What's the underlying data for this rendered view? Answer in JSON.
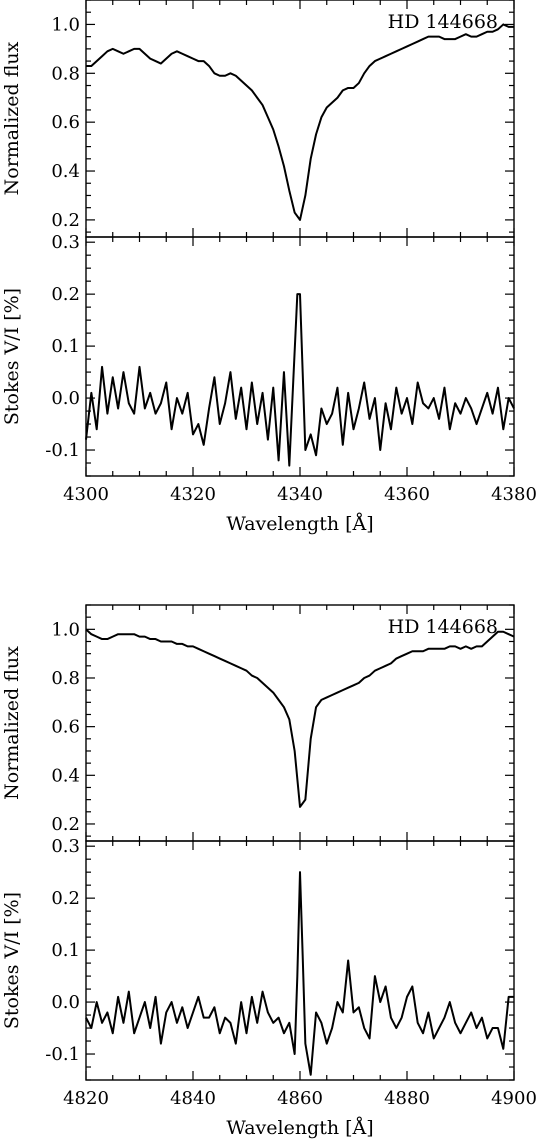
{
  "chart_data": [
    {
      "type": "line",
      "xlim": [
        4300,
        4380
      ],
      "ylim": [
        0.13,
        1.1
      ],
      "x_ticks": [
        "4300",
        "4320",
        "4340",
        "4360",
        "4380"
      ],
      "y_ticks": [
        "0.2",
        "0.4",
        "0.6",
        "0.8",
        "1.0"
      ],
      "ylabel": "Normalized flux",
      "annotation": "HD 144668",
      "series": [
        {
          "x": [
            4300,
            4301,
            4302,
            4303,
            4304,
            4305,
            4306,
            4307,
            4308,
            4309,
            4310,
            4311,
            4312,
            4313,
            4314,
            4315,
            4316,
            4317,
            4318,
            4319,
            4320,
            4321,
            4322,
            4323,
            4324,
            4325,
            4326,
            4327,
            4328,
            4329,
            4330,
            4331,
            4332,
            4333,
            4334,
            4335,
            4336,
            4337,
            4338,
            4339,
            4340,
            4341,
            4342,
            4343,
            4344,
            4345,
            4346,
            4347,
            4348,
            4349,
            4350,
            4351,
            4352,
            4353,
            4354,
            4355,
            4356,
            4357,
            4358,
            4359,
            4360,
            4361,
            4362,
            4363,
            4364,
            4365,
            4366,
            4367,
            4368,
            4369,
            4370,
            4371,
            4372,
            4373,
            4374,
            4375,
            4376,
            4377,
            4378,
            4379,
            4380
          ],
          "y": [
            0.83,
            0.83,
            0.85,
            0.87,
            0.89,
            0.9,
            0.89,
            0.88,
            0.89,
            0.9,
            0.9,
            0.88,
            0.86,
            0.85,
            0.84,
            0.86,
            0.88,
            0.89,
            0.88,
            0.87,
            0.86,
            0.85,
            0.85,
            0.83,
            0.8,
            0.79,
            0.79,
            0.8,
            0.79,
            0.77,
            0.75,
            0.73,
            0.7,
            0.67,
            0.62,
            0.57,
            0.5,
            0.42,
            0.32,
            0.23,
            0.2,
            0.3,
            0.45,
            0.55,
            0.62,
            0.66,
            0.68,
            0.7,
            0.73,
            0.74,
            0.74,
            0.76,
            0.8,
            0.83,
            0.85,
            0.86,
            0.87,
            0.88,
            0.89,
            0.9,
            0.91,
            0.92,
            0.93,
            0.94,
            0.95,
            0.95,
            0.95,
            0.94,
            0.94,
            0.94,
            0.95,
            0.96,
            0.95,
            0.95,
            0.96,
            0.97,
            0.97,
            0.98,
            1.0,
            0.99,
            0.99
          ]
        }
      ]
    },
    {
      "type": "line",
      "xlim": [
        4300,
        4380
      ],
      "ylim": [
        -0.15,
        0.31
      ],
      "x_ticks": [
        "4300",
        "4320",
        "4340",
        "4360",
        "4380"
      ],
      "y_ticks": [
        "-0.1",
        "0.0",
        "0.1",
        "0.2",
        "0.3"
      ],
      "xlabel": "Wavelength [Å]",
      "ylabel": "Stokes V/I [%]",
      "series": [
        {
          "x": [
            4300,
            4301,
            4302,
            4303,
            4304,
            4305,
            4306,
            4307,
            4308,
            4309,
            4310,
            4311,
            4312,
            4313,
            4314,
            4315,
            4316,
            4317,
            4318,
            4319,
            4320,
            4321,
            4322,
            4323,
            4324,
            4325,
            4326,
            4327,
            4328,
            4329,
            4330,
            4331,
            4332,
            4333,
            4334,
            4335,
            4336,
            4337,
            4338,
            4339,
            4339.5,
            4340,
            4340.5,
            4341,
            4342,
            4343,
            4344,
            4345,
            4346,
            4347,
            4348,
            4349,
            4350,
            4351,
            4352,
            4353,
            4354,
            4355,
            4356,
            4357,
            4358,
            4359,
            4360,
            4361,
            4362,
            4363,
            4364,
            4365,
            4366,
            4367,
            4368,
            4369,
            4370,
            4371,
            4372,
            4373,
            4374,
            4375,
            4376,
            4377,
            4378,
            4379,
            4380
          ],
          "y": [
            -0.08,
            0.01,
            -0.06,
            0.06,
            -0.03,
            0.04,
            -0.02,
            0.05,
            -0.01,
            -0.03,
            0.06,
            -0.02,
            0.01,
            -0.03,
            -0.01,
            0.03,
            -0.06,
            0.0,
            -0.03,
            0.01,
            -0.07,
            -0.05,
            -0.09,
            -0.02,
            0.04,
            -0.05,
            -0.01,
            0.05,
            -0.04,
            0.02,
            -0.06,
            0.03,
            -0.05,
            0.01,
            -0.08,
            0.02,
            -0.12,
            0.05,
            -0.13,
            0.09,
            0.2,
            0.2,
            0.05,
            -0.1,
            -0.07,
            -0.11,
            -0.02,
            -0.05,
            -0.03,
            0.02,
            -0.09,
            0.01,
            -0.06,
            -0.02,
            0.03,
            -0.04,
            0.0,
            -0.1,
            -0.01,
            -0.06,
            0.02,
            -0.03,
            0.0,
            -0.05,
            0.03,
            -0.01,
            -0.02,
            0.0,
            -0.04,
            0.02,
            -0.06,
            -0.01,
            -0.03,
            0.0,
            -0.02,
            -0.05,
            -0.02,
            0.01,
            -0.03,
            0.02,
            -0.06,
            0.0,
            -0.02
          ]
        }
      ]
    },
    {
      "type": "line",
      "xlim": [
        4820,
        4900
      ],
      "ylim": [
        0.13,
        1.1
      ],
      "x_ticks": [
        "4820",
        "4840",
        "4860",
        "4880",
        "4900"
      ],
      "y_ticks": [
        "0.2",
        "0.4",
        "0.6",
        "0.8",
        "1.0"
      ],
      "ylabel": "Normalized flux",
      "annotation": "HD 144668",
      "series": [
        {
          "x": [
            4820,
            4821,
            4822,
            4823,
            4824,
            4825,
            4826,
            4827,
            4828,
            4829,
            4830,
            4831,
            4832,
            4833,
            4834,
            4835,
            4836,
            4837,
            4838,
            4839,
            4840,
            4841,
            4842,
            4843,
            4844,
            4845,
            4846,
            4847,
            4848,
            4849,
            4850,
            4851,
            4852,
            4853,
            4854,
            4855,
            4856,
            4857,
            4858,
            4859,
            4860,
            4861,
            4862,
            4863,
            4864,
            4865,
            4866,
            4867,
            4868,
            4869,
            4870,
            4871,
            4872,
            4873,
            4874,
            4875,
            4876,
            4877,
            4878,
            4879,
            4880,
            4881,
            4882,
            4883,
            4884,
            4885,
            4886,
            4887,
            4888,
            4889,
            4890,
            4891,
            4892,
            4893,
            4894,
            4895,
            4896,
            4897,
            4898,
            4899,
            4900
          ],
          "y": [
            1.0,
            0.98,
            0.97,
            0.96,
            0.96,
            0.97,
            0.98,
            0.98,
            0.98,
            0.98,
            0.97,
            0.97,
            0.96,
            0.96,
            0.95,
            0.95,
            0.95,
            0.94,
            0.94,
            0.93,
            0.93,
            0.92,
            0.91,
            0.9,
            0.89,
            0.88,
            0.87,
            0.86,
            0.85,
            0.84,
            0.83,
            0.81,
            0.8,
            0.78,
            0.76,
            0.74,
            0.71,
            0.68,
            0.63,
            0.5,
            0.27,
            0.3,
            0.55,
            0.68,
            0.71,
            0.72,
            0.73,
            0.74,
            0.75,
            0.76,
            0.77,
            0.78,
            0.8,
            0.81,
            0.83,
            0.84,
            0.85,
            0.86,
            0.88,
            0.89,
            0.9,
            0.91,
            0.91,
            0.91,
            0.92,
            0.92,
            0.92,
            0.92,
            0.93,
            0.93,
            0.92,
            0.93,
            0.92,
            0.93,
            0.93,
            0.95,
            0.97,
            0.99,
            0.99,
            0.98,
            0.97
          ]
        }
      ]
    },
    {
      "type": "line",
      "xlim": [
        4820,
        4900
      ],
      "ylim": [
        -0.15,
        0.31
      ],
      "x_ticks": [
        "4820",
        "4840",
        "4860",
        "4880",
        "4900"
      ],
      "y_ticks": [
        "-0.1",
        "0.0",
        "0.1",
        "0.2",
        "0.3"
      ],
      "xlabel": "Wavelength [Å]",
      "ylabel": "Stokes V/I [%]",
      "series": [
        {
          "x": [
            4820,
            4821,
            4822,
            4823,
            4824,
            4825,
            4826,
            4827,
            4828,
            4829,
            4830,
            4831,
            4832,
            4833,
            4834,
            4835,
            4836,
            4837,
            4838,
            4839,
            4840,
            4841,
            4842,
            4843,
            4844,
            4845,
            4846,
            4847,
            4848,
            4849,
            4850,
            4851,
            4852,
            4853,
            4854,
            4855,
            4856,
            4857,
            4858,
            4859,
            4859.5,
            4860,
            4860.5,
            4861,
            4862,
            4863,
            4864,
            4865,
            4866,
            4867,
            4868,
            4869,
            4870,
            4871,
            4872,
            4873,
            4874,
            4875,
            4876,
            4877,
            4878,
            4879,
            4880,
            4881,
            4882,
            4883,
            4884,
            4885,
            4886,
            4887,
            4888,
            4889,
            4890,
            4891,
            4892,
            4893,
            4894,
            4895,
            4896,
            4897,
            4898,
            4899,
            4900
          ],
          "y": [
            -0.03,
            -0.05,
            0.0,
            -0.04,
            -0.02,
            -0.06,
            0.01,
            -0.04,
            0.02,
            -0.06,
            -0.03,
            0.0,
            -0.05,
            0.01,
            -0.08,
            -0.02,
            0.0,
            -0.04,
            -0.01,
            -0.05,
            -0.02,
            0.01,
            -0.03,
            -0.03,
            -0.01,
            -0.06,
            -0.03,
            -0.04,
            -0.08,
            0.0,
            -0.06,
            0.01,
            -0.04,
            0.02,
            -0.02,
            -0.04,
            -0.03,
            -0.06,
            -0.04,
            -0.1,
            0.05,
            0.25,
            0.09,
            -0.08,
            -0.14,
            -0.02,
            -0.04,
            -0.08,
            -0.05,
            0.0,
            -0.02,
            0.08,
            -0.02,
            -0.01,
            -0.05,
            -0.07,
            0.05,
            0.0,
            0.03,
            -0.03,
            -0.05,
            -0.03,
            0.01,
            0.03,
            -0.04,
            -0.06,
            -0.02,
            -0.07,
            -0.05,
            -0.03,
            0.0,
            -0.04,
            -0.06,
            -0.04,
            -0.02,
            -0.05,
            -0.03,
            -0.07,
            -0.05,
            -0.05,
            -0.09,
            0.01,
            0.01
          ]
        }
      ]
    }
  ]
}
